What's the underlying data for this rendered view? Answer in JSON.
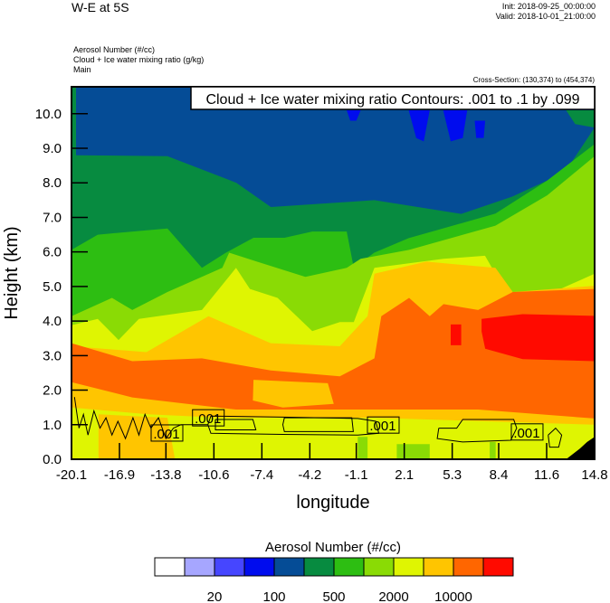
{
  "header": {
    "title": "W-E at 5S",
    "init": "Init: 2018-09-25_00:00:00",
    "valid": "Valid: 2018-10-01_21:00:00",
    "fields": [
      "Aerosol Number   (#/cc)",
      "Cloud + Ice water mixing ratio   (g/kg)",
      "Main"
    ],
    "cross_section": "Cross-Section: (130,374) to (454,374)"
  },
  "chart_data": {
    "type": "heatmap",
    "subtype": "filled contour cross-section with line contours",
    "xlabel": "longitude",
    "ylabel": "Height (km)",
    "xlim": [
      -20.1,
      14.8
    ],
    "ylim": [
      0,
      10.78
    ],
    "xticks": [
      "-20.1",
      "-16.9",
      "-13.8",
      "-10.6",
      "-7.4",
      "-4.2",
      "-1.1",
      "2.1",
      "5.3",
      "8.4",
      "11.6",
      "14.8"
    ],
    "xtick_values": [
      -20.1,
      -16.9,
      -13.8,
      -10.6,
      -7.4,
      -4.2,
      -1.1,
      2.1,
      5.3,
      8.4,
      11.6,
      14.8
    ],
    "yticks": [
      "0.0",
      "1.0",
      "2.0",
      "3.0",
      "4.0",
      "5.0",
      "6.0",
      "7.0",
      "8.0",
      "9.0",
      "10.0"
    ],
    "ytick_values": [
      0,
      1,
      2,
      3,
      4,
      5,
      6,
      7,
      8,
      9,
      10
    ],
    "contour_legend": "Cloud + Ice water mixing ratio Contours: .001 to .1 by .099",
    "colorbar": {
      "title": "Aerosol Number  (#/cc)",
      "colors": [
        "#ffffff",
        "#a6a6ff",
        "#4646ff",
        "#000cee",
        "#054c96",
        "#078b40",
        "#2dbe12",
        "#8adb05",
        "#dff502",
        "#ffc500",
        "#ff6600",
        "#ff0a00"
      ],
      "labels": [
        "20",
        "100",
        "500",
        "2000",
        "10000"
      ],
      "label_after_box": [
        2,
        4,
        6,
        8,
        10
      ]
    },
    "background_level": 4,
    "fill_below_curves": [
      {
        "level": 5,
        "points": [
          [
            -20.1,
            10.78
          ],
          [
            -19.8,
            10.78
          ],
          [
            -19.8,
            8.8
          ],
          [
            -13.7,
            8.77
          ],
          [
            -9.1,
            8.0
          ],
          [
            -6.8,
            7.3
          ],
          [
            0.1,
            7.5
          ],
          [
            5.9,
            7.1
          ],
          [
            9.3,
            7.6
          ],
          [
            12.8,
            8.3
          ],
          [
            14.8,
            9.6
          ]
        ]
      },
      {
        "level": 6,
        "points": [
          [
            -20.1,
            6.06
          ],
          [
            -18.35,
            6.5
          ],
          [
            -13.7,
            6.68
          ],
          [
            -11.4,
            5.54
          ],
          [
            -9.8,
            5.98
          ],
          [
            -7.96,
            6.41
          ],
          [
            -5.89,
            6.41
          ],
          [
            -4.04,
            6.59
          ],
          [
            -1.74,
            6.59
          ],
          [
            -1.27,
            5.54
          ],
          [
            0.1,
            5.98
          ],
          [
            2.4,
            6.4
          ],
          [
            8.18,
            7.11
          ],
          [
            11.64,
            8.07
          ],
          [
            14.8,
            9.12
          ]
        ]
      },
      {
        "level": 7,
        "points": [
          [
            -20.1,
            4.14
          ],
          [
            -17.4,
            4.67
          ],
          [
            -16.04,
            4.32
          ],
          [
            -13.7,
            4.84
          ],
          [
            -10.04,
            5.54
          ],
          [
            -9.58,
            5.98
          ],
          [
            -7.73,
            5.72
          ],
          [
            -4.5,
            5.28
          ],
          [
            -1.74,
            5.54
          ],
          [
            -0.81,
            5.8
          ],
          [
            2.42,
            6.06
          ],
          [
            8.18,
            6.76
          ],
          [
            11.64,
            7.64
          ],
          [
            14.8,
            8.77
          ]
        ]
      },
      {
        "level": 8,
        "points": [
          [
            -20.1,
            3.88
          ],
          [
            -18.35,
            4.06
          ],
          [
            -16.96,
            3.45
          ],
          [
            -15.6,
            4.06
          ],
          [
            -11.4,
            4.32
          ],
          [
            -9.12,
            5.54
          ],
          [
            -8.2,
            4.93
          ],
          [
            -6.35,
            4.67
          ],
          [
            -4.04,
            3.71
          ],
          [
            -2.2,
            3.97
          ],
          [
            -1.27,
            3.97
          ],
          [
            0.11,
            5.54
          ],
          [
            4.72,
            5.8
          ],
          [
            7.49,
            5.89
          ],
          [
            8.88,
            4.84
          ],
          [
            11.64,
            4.76
          ],
          [
            14.8,
            5.37
          ]
        ]
      },
      {
        "level": 9,
        "points": [
          [
            -20.1,
            3.27
          ],
          [
            -15.1,
            3.1
          ],
          [
            -10.96,
            4.14
          ],
          [
            -6.81,
            3.36
          ],
          [
            -2.2,
            3.27
          ],
          [
            -0.35,
            4.14
          ],
          [
            0.11,
            5.37
          ],
          [
            3.57,
            5.72
          ],
          [
            8.18,
            5.54
          ],
          [
            9.34,
            4.84
          ],
          [
            14.8,
            5.02
          ]
        ]
      },
      {
        "level": 10,
        "points": [
          [
            -20.1,
            3.36
          ],
          [
            -16.04,
            2.84
          ],
          [
            -11.4,
            2.92
          ],
          [
            -6.81,
            2.57
          ],
          [
            -2.2,
            2.4
          ],
          [
            0.11,
            2.92
          ],
          [
            0.57,
            4.14
          ],
          [
            2.42,
            4.67
          ],
          [
            3.8,
            4.14
          ],
          [
            4.72,
            4.49
          ],
          [
            7.03,
            4.32
          ],
          [
            9.34,
            4.84
          ],
          [
            14.8,
            4.93
          ]
        ]
      },
      {
        "level": 9,
        "points": [
          [
            -20.1,
            2.23
          ],
          [
            -16.04,
            1.79
          ],
          [
            -9.12,
            1.44
          ],
          [
            -4.04,
            1.44
          ],
          [
            2.42,
            1.44
          ],
          [
            7.03,
            1.44
          ],
          [
            14.8,
            1.18
          ]
        ]
      },
      {
        "level": 8,
        "points": [
          [
            -20.1,
            1.5
          ],
          [
            -15,
            1.3
          ],
          [
            -10,
            1.2
          ],
          [
            0,
            1.2
          ],
          [
            14.8,
            1.0
          ]
        ]
      }
    ],
    "regions": [
      {
        "level": 5,
        "points": [
          [
            12.9,
            10.1
          ],
          [
            14.8,
            10.1
          ],
          [
            14.8,
            9.6
          ],
          [
            13.5,
            9.7
          ]
        ]
      },
      {
        "level": 3,
        "points": [
          [
            -1.74,
            10.1
          ],
          [
            -0.81,
            10.1
          ],
          [
            -1.1,
            9.8
          ],
          [
            -1.5,
            9.8
          ]
        ]
      },
      {
        "level": 3,
        "points": [
          [
            2.4,
            10.1
          ],
          [
            3.8,
            10.1
          ],
          [
            3.4,
            9.2
          ],
          [
            2.9,
            9.3
          ]
        ]
      },
      {
        "level": 3,
        "points": [
          [
            4.7,
            10.1
          ],
          [
            6.3,
            10.1
          ],
          [
            6.0,
            9.3
          ],
          [
            5.2,
            9.2
          ]
        ]
      },
      {
        "level": 3,
        "points": [
          [
            6.8,
            9.8
          ],
          [
            7.5,
            9.8
          ],
          [
            7.4,
            9.3
          ],
          [
            6.9,
            9.3
          ]
        ]
      },
      {
        "level": 9,
        "points": [
          [
            -7.96,
            2.3
          ],
          [
            -3.0,
            2.2
          ],
          [
            -2.6,
            1.6
          ],
          [
            -6.0,
            1.5
          ],
          [
            -8.0,
            1.7
          ]
        ]
      },
      {
        "level": 11,
        "points": [
          [
            7.26,
            4.06
          ],
          [
            10.0,
            4.2
          ],
          [
            14.8,
            4.15
          ],
          [
            14.8,
            2.84
          ],
          [
            10.0,
            2.9
          ],
          [
            7.5,
            3.2
          ],
          [
            7.26,
            3.7
          ]
        ]
      },
      {
        "level": 11,
        "points": [
          [
            5.2,
            3.9
          ],
          [
            5.9,
            3.9
          ],
          [
            5.9,
            3.3
          ],
          [
            5.2,
            3.3
          ]
        ]
      },
      {
        "level": 9,
        "points": [
          [
            -18.3,
            1.3
          ],
          [
            -13.7,
            1.2
          ],
          [
            -13.2,
            0
          ],
          [
            -18.3,
            0
          ]
        ]
      },
      {
        "level": 7,
        "points": [
          [
            -1.0,
            0.65
          ],
          [
            -0.35,
            0.65
          ],
          [
            -0.35,
            0
          ],
          [
            -1.0,
            0
          ]
        ]
      },
      {
        "level": 7,
        "points": [
          [
            1.6,
            0.44
          ],
          [
            3.8,
            0.44
          ],
          [
            3.8,
            0
          ],
          [
            1.6,
            0
          ]
        ]
      },
      {
        "level": 7,
        "points": [
          [
            7.8,
            0.5
          ],
          [
            8.2,
            0.5
          ],
          [
            8.2,
            0
          ],
          [
            7.8,
            0
          ]
        ]
      }
    ],
    "terrain": [
      [
        12.9,
        0
      ],
      [
        13.8,
        0.3
      ],
      [
        14.3,
        0.5
      ],
      [
        14.8,
        0.65
      ],
      [
        14.8,
        0
      ]
    ],
    "terrain_color": "#000000",
    "contours": [
      [
        [
          -10.8,
          1.25
        ],
        [
          -6,
          1.22
        ],
        [
          -1,
          1.18
        ],
        [
          0.2,
          1.1
        ],
        [
          0.4,
          0.75
        ],
        [
          -1,
          0.7
        ],
        [
          -6,
          0.72
        ],
        [
          -10.8,
          0.75
        ],
        [
          -11,
          1.0
        ],
        [
          -10.8,
          1.25
        ]
      ],
      [
        [
          -5.9,
          1.2
        ],
        [
          -1.4,
          1.2
        ],
        [
          -1.3,
          0.8
        ],
        [
          -5.9,
          0.8
        ],
        [
          -6.0,
          1.0
        ],
        [
          -5.9,
          1.2
        ]
      ],
      [
        [
          -10.5,
          1.15
        ],
        [
          -8.0,
          1.15
        ],
        [
          -7.8,
          0.85
        ],
        [
          -10.5,
          0.85
        ],
        [
          -10.5,
          1.15
        ]
      ],
      [
        [
          4.4,
          0.9
        ],
        [
          5.6,
          0.9
        ],
        [
          6.0,
          1.15
        ],
        [
          9.4,
          1.15
        ],
        [
          9.6,
          0.9
        ],
        [
          9.2,
          0.55
        ],
        [
          6.0,
          0.5
        ],
        [
          4.3,
          0.6
        ],
        [
          4.4,
          0.9
        ]
      ],
      [
        [
          -19.9,
          1.8
        ],
        [
          -19.6,
          0.9
        ],
        [
          -19.3,
          1.3
        ],
        [
          -19.0,
          0.7
        ],
        [
          -18.6,
          1.4
        ],
        [
          -18.2,
          0.9
        ],
        [
          -17.8,
          1.2
        ],
        [
          -17.4,
          0.7
        ],
        [
          -17.0,
          1.1
        ],
        [
          -16.5,
          0.6
        ],
        [
          -16.0,
          1.2
        ],
        [
          -15.6,
          0.7
        ],
        [
          -15.2,
          1.3
        ],
        [
          -14.8,
          0.9
        ],
        [
          -14.3,
          1.2
        ],
        [
          -13.8,
          0.6
        ],
        [
          -13.3,
          0.9
        ],
        [
          -12.8,
          1.0
        ],
        [
          -11,
          1.0
        ]
      ],
      [
        [
          11.7,
          0.7
        ],
        [
          12.2,
          0.9
        ],
        [
          12.6,
          0.7
        ],
        [
          12.4,
          0.35
        ],
        [
          11.8,
          0.35
        ],
        [
          11.7,
          0.7
        ]
      ]
    ],
    "contour_labels": [
      {
        "text": ".001",
        "lon": -11.0,
        "h": 1.2
      },
      {
        "text": ".001",
        "lon": -13.76,
        "h": 0.76
      },
      {
        "text": ".001",
        "lon": 0.67,
        "h": 0.99
      },
      {
        "text": ".001",
        "lon": 10.27,
        "h": 0.79
      }
    ]
  }
}
